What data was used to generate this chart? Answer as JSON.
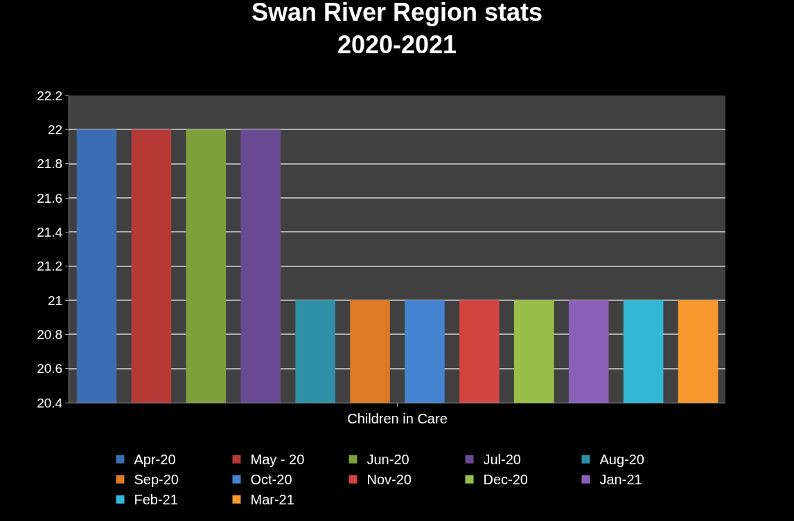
{
  "chart_data": {
    "type": "bar",
    "title": "Swan River Region stats\n2020-2021",
    "categories": [
      "Children in Care"
    ],
    "series": [
      {
        "name": "Apr-20",
        "color": "#3b6db3",
        "values": [
          22
        ]
      },
      {
        "name": "May - 20",
        "color": "#b53a37",
        "values": [
          22
        ]
      },
      {
        "name": "Jun-20",
        "color": "#7ea03c",
        "values": [
          22
        ]
      },
      {
        "name": "Jul-20",
        "color": "#684a92",
        "values": [
          22
        ]
      },
      {
        "name": "Aug-20",
        "color": "#2f8fa7",
        "values": [
          21
        ]
      },
      {
        "name": "Sep-20",
        "color": "#dd7a23",
        "values": [
          21
        ]
      },
      {
        "name": "Oct-20",
        "color": "#4683d0",
        "values": [
          21
        ]
      },
      {
        "name": "Nov-20",
        "color": "#d3443f",
        "values": [
          21
        ]
      },
      {
        "name": "Dec-20",
        "color": "#98c048",
        "values": [
          21
        ]
      },
      {
        "name": "Jan-21",
        "color": "#8a60b8",
        "values": [
          21
        ]
      },
      {
        "name": "Feb-21",
        "color": "#34b6d6",
        "values": [
          21
        ]
      },
      {
        "name": "Mar-21",
        "color": "#f7982f",
        "values": [
          21
        ]
      }
    ],
    "ylim": [
      20.4,
      22.2
    ],
    "yticks": [
      20.4,
      20.6,
      20.8,
      21,
      21.2,
      21.4,
      21.6,
      21.8,
      22,
      22.2
    ],
    "grid": "y",
    "legend": "bottom"
  }
}
